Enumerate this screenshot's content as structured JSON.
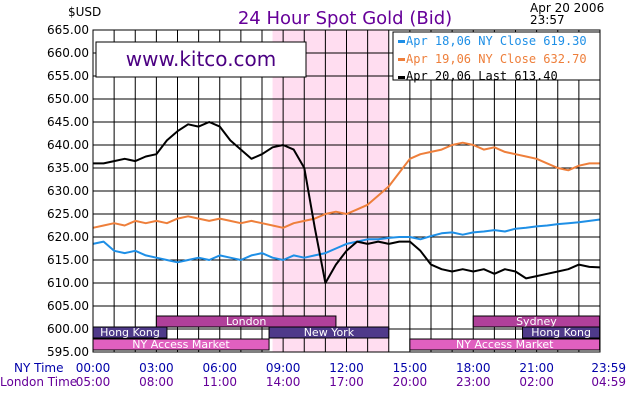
{
  "header": {
    "unit": "$USD",
    "title": "24 Hour Spot Gold (Bid)",
    "date": "Apr 20 2006",
    "time": "23:57",
    "site": "www.kitco.com"
  },
  "legend": [
    {
      "text": "Apr 18,06 NY Close 619.30",
      "color": "#1e8fe6"
    },
    {
      "text": "Apr 19,06 NY Close 632.70",
      "color": "#ee7f3b"
    },
    {
      "text": "Apr 20,06 Last 613.40",
      "color": "#000000"
    }
  ],
  "markets": [
    {
      "name": "London",
      "start": "03:00",
      "end": "11:30",
      "color": "#b0409a"
    },
    {
      "name": "Sydney",
      "start": "18:00",
      "end": "23:59",
      "color": "#b0409a"
    },
    {
      "name": "Hong Kong",
      "start": "00:00",
      "end": "03:30",
      "color": "#4f3a8a"
    },
    {
      "name": "New York",
      "start": "08:20",
      "end": "14:00",
      "color": "#4f3a8a"
    },
    {
      "name": "Hong Kong",
      "start": "20:20",
      "end": "23:59",
      "color": "#4f3a8a"
    },
    {
      "name": "NY Access Market",
      "start": "00:00",
      "end": "08:20",
      "color": "#e060c0"
    },
    {
      "name": "NY Access Market",
      "start": "15:00",
      "end": "23:59",
      "color": "#e060c0"
    }
  ],
  "chart_data": {
    "type": "line",
    "title": "24 Hour Spot Gold (Bid)",
    "ylabel": "$USD",
    "ylim": [
      595,
      665
    ],
    "yticks": [
      "665.00",
      "660.00",
      "655.00",
      "650.00",
      "645.00",
      "640.00",
      "635.00",
      "630.00",
      "625.00",
      "620.00",
      "615.00",
      "610.00",
      "605.00",
      "600.00",
      "595.00"
    ],
    "xlim": [
      0,
      24
    ],
    "xticks_ny": [
      "00:00",
      "03:00",
      "06:00",
      "09:00",
      "12:00",
      "15:00",
      "18:00",
      "21:00",
      "23:59"
    ],
    "xticks_london": [
      "05:00",
      "08:00",
      "11:00",
      "14:00",
      "17:00",
      "20:00",
      "23:00",
      "02:00",
      "04:59"
    ],
    "x_axis_title_ny": "NY Time",
    "x_axis_title_london": "London Time",
    "grid": true,
    "highlight": {
      "start": "08:30",
      "end": "14:00",
      "color": "#ffddf0"
    },
    "series": [
      {
        "name": "Apr 18,06 NY Close 619.30",
        "color": "#1e8fe6",
        "x": [
          0,
          0.5,
          1,
          1.5,
          2,
          2.5,
          3,
          3.5,
          4,
          4.5,
          5,
          5.5,
          6,
          6.5,
          7,
          7.5,
          8,
          8.5,
          9,
          9.5,
          10,
          10.5,
          11,
          11.5,
          12,
          12.5,
          13,
          13.5,
          14,
          14.5,
          15,
          15.5,
          16,
          16.5,
          17,
          17.5,
          18,
          18.5,
          19,
          19.5,
          20,
          20.5,
          21,
          21.5,
          22,
          22.5,
          23,
          23.5,
          24
        ],
        "y": [
          618.5,
          619,
          617,
          616.5,
          617,
          616,
          615.5,
          615,
          614.5,
          615,
          615.5,
          615,
          616,
          615.5,
          615,
          616,
          616.5,
          615.5,
          615,
          616,
          615.5,
          616,
          616.5,
          617.5,
          618.5,
          619,
          619.5,
          619.5,
          619.8,
          620,
          620,
          619.5,
          620.2,
          620.8,
          621,
          620.5,
          621,
          621.2,
          621.5,
          621.2,
          621.8,
          622,
          622.3,
          622.5,
          622.8,
          623,
          623.2,
          623.5,
          623.8
        ]
      },
      {
        "name": "Apr 19,06 NY Close 632.70",
        "color": "#ee7f3b",
        "x": [
          0,
          0.5,
          1,
          1.5,
          2,
          2.5,
          3,
          3.5,
          4,
          4.5,
          5,
          5.5,
          6,
          6.5,
          7,
          7.5,
          8,
          8.5,
          9,
          9.5,
          10,
          10.5,
          11,
          11.5,
          12,
          12.5,
          13,
          13.5,
          14,
          14.5,
          15,
          15.5,
          16,
          16.5,
          17,
          17.5,
          18,
          18.5,
          19,
          19.5,
          20,
          20.5,
          21,
          21.5,
          22,
          22.5,
          23,
          23.5,
          24
        ],
        "y": [
          622,
          622.5,
          623,
          622.5,
          623.5,
          623,
          623.5,
          623,
          624,
          624.5,
          624,
          623.5,
          624,
          623.5,
          623,
          623.5,
          623,
          622.5,
          622,
          623,
          623.5,
          624,
          625,
          625.5,
          625,
          626,
          627,
          629,
          631,
          634,
          637,
          638,
          638.5,
          639,
          640,
          640.5,
          640,
          639,
          639.5,
          638.5,
          638,
          637.5,
          637,
          636,
          635,
          634.5,
          635.5,
          636,
          636
        ]
      },
      {
        "name": "Apr 20,06 Last 613.40",
        "color": "#000000",
        "x": [
          0,
          0.5,
          1,
          1.5,
          2,
          2.5,
          3,
          3.5,
          4,
          4.5,
          5,
          5.5,
          6,
          6.5,
          7,
          7.5,
          8,
          8.5,
          9,
          9.5,
          10,
          10.5,
          11,
          11.5,
          12,
          12.5,
          13,
          13.5,
          14,
          14.5,
          15,
          15.5,
          16,
          16.5,
          17,
          17.5,
          18,
          18.5,
          19,
          19.5,
          20,
          20.5,
          21,
          21.5,
          22,
          22.5,
          23,
          23.5,
          24
        ],
        "y": [
          636,
          636,
          636.5,
          637,
          636.5,
          637.5,
          638,
          641,
          643,
          644.5,
          644,
          645,
          644,
          641,
          639,
          637,
          638,
          639.5,
          640,
          639,
          635,
          622,
          610,
          614,
          617,
          619,
          618.5,
          619,
          618.5,
          619,
          619,
          617,
          614,
          613,
          612.5,
          613,
          612.5,
          613,
          612,
          613,
          612.5,
          611,
          611.5,
          612,
          612.5,
          613,
          614,
          613.5,
          613.4
        ]
      }
    ]
  }
}
